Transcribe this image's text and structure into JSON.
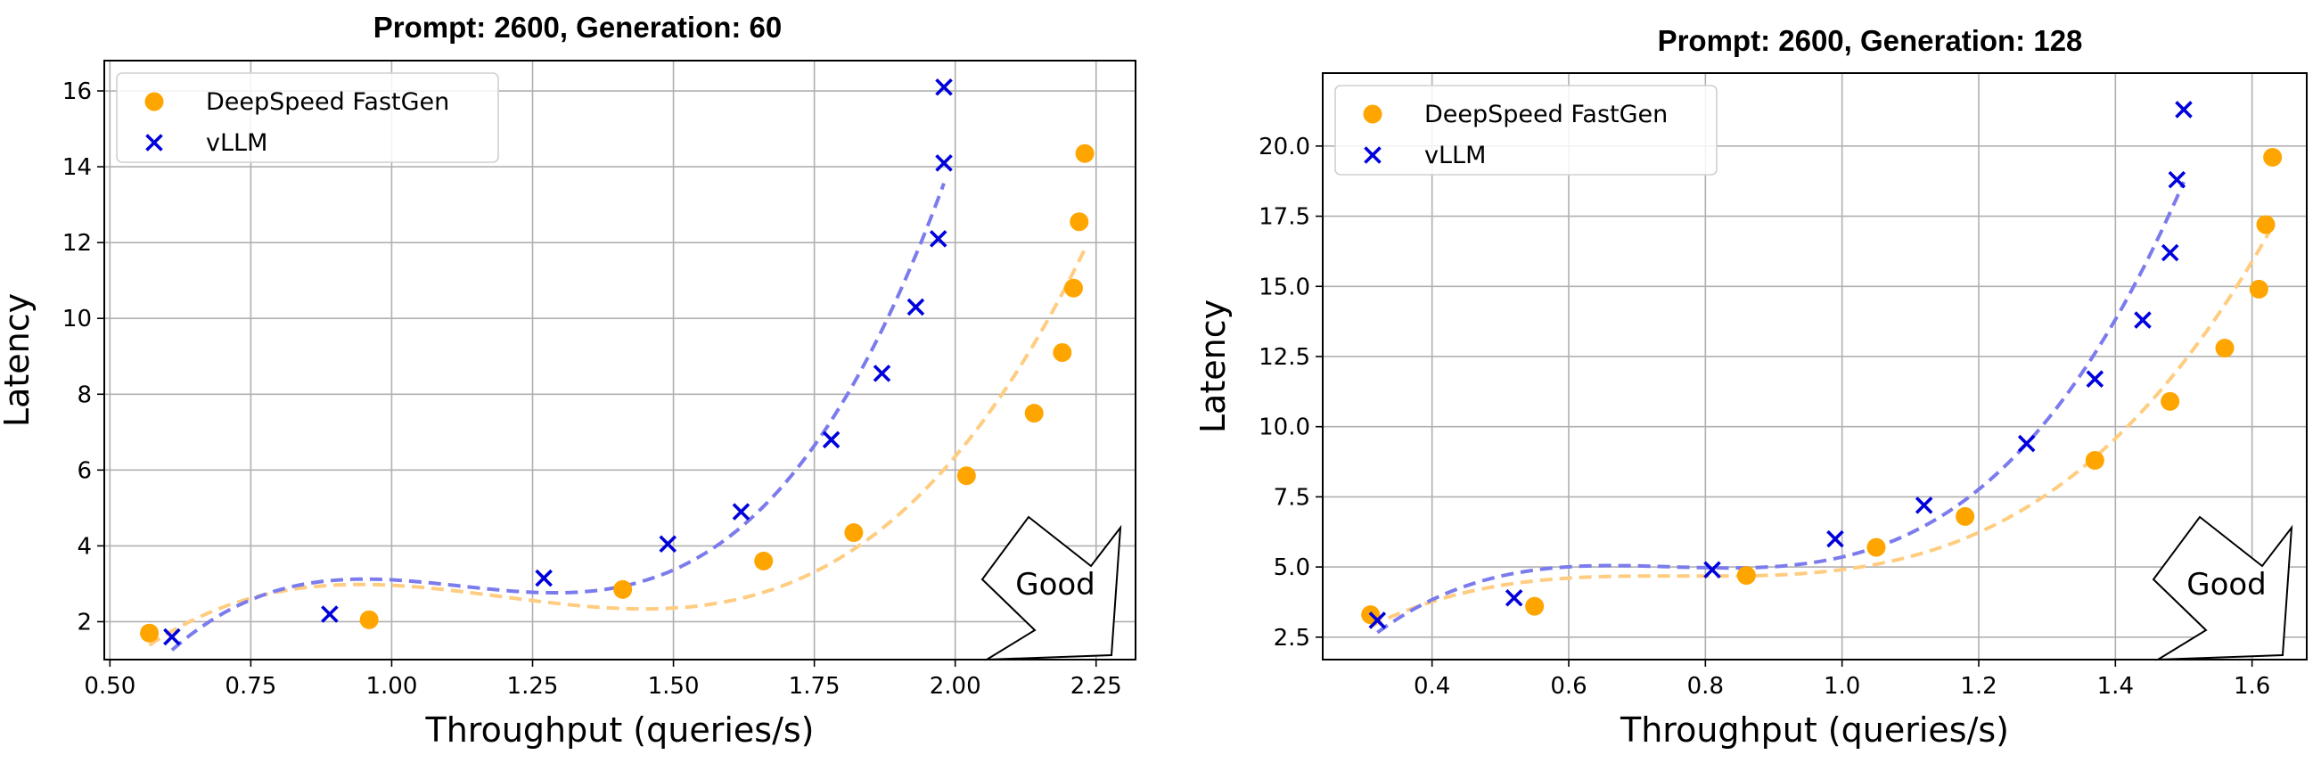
{
  "chart_data": [
    {
      "type": "scatter",
      "title": "Prompt: 2600, Generation: 60",
      "xlabel": "Throughput (queries/s)",
      "ylabel": "Latency",
      "xlim": [
        0.49,
        2.32
      ],
      "ylim": [
        1.0,
        16.8
      ],
      "xticks": [
        0.5,
        0.75,
        1.0,
        1.25,
        1.5,
        1.75,
        2.0,
        2.25
      ],
      "xtick_labels": [
        "0.50",
        "0.75",
        "1.00",
        "1.25",
        "1.50",
        "1.75",
        "2.00",
        "2.25"
      ],
      "yticks": [
        2,
        4,
        6,
        8,
        10,
        12,
        14,
        16
      ],
      "ytick_labels": [
        "2",
        "4",
        "6",
        "8",
        "10",
        "12",
        "14",
        "16"
      ],
      "grid": true,
      "legend_position": "top-left",
      "annotation": "Good",
      "series": [
        {
          "name": "DeepSpeed FastGen",
          "marker": "circle",
          "color": "#FFA500",
          "trend_color": "#FFCC80",
          "x": [
            0.57,
            0.96,
            1.41,
            1.66,
            1.82,
            2.02,
            2.14,
            2.19,
            2.21,
            2.22,
            2.23
          ],
          "y": [
            1.7,
            2.05,
            2.85,
            3.6,
            4.35,
            5.85,
            7.5,
            9.1,
            10.8,
            12.55,
            14.35
          ]
        },
        {
          "name": "vLLM",
          "marker": "x",
          "color": "#0000DD",
          "trend_color": "#7B7BEE",
          "x": [
            0.61,
            0.89,
            1.27,
            1.49,
            1.62,
            1.78,
            1.87,
            1.93,
            1.97,
            1.98,
            1.98
          ],
          "y": [
            1.6,
            2.2,
            3.15,
            4.05,
            4.9,
            6.8,
            8.55,
            10.3,
            12.1,
            14.1,
            16.1
          ]
        }
      ]
    },
    {
      "type": "scatter",
      "title": "Prompt: 2600, Generation: 128",
      "xlabel": "Throughput (queries/s)",
      "ylabel": "Latency",
      "xlim": [
        0.24,
        1.68
      ],
      "ylim": [
        1.7,
        22.6
      ],
      "xticks": [
        0.4,
        0.6,
        0.8,
        1.0,
        1.2,
        1.4,
        1.6
      ],
      "xtick_labels": [
        "0.4",
        "0.6",
        "0.8",
        "1.0",
        "1.2",
        "1.4",
        "1.6"
      ],
      "yticks": [
        2.5,
        5.0,
        7.5,
        10.0,
        12.5,
        15.0,
        17.5,
        20.0
      ],
      "ytick_labels": [
        "2.5",
        "5.0",
        "7.5",
        "10.0",
        "12.5",
        "15.0",
        "17.5",
        "20.0"
      ],
      "grid": true,
      "legend_position": "top-left",
      "annotation": "Good",
      "series": [
        {
          "name": "DeepSpeed FastGen",
          "marker": "circle",
          "color": "#FFA500",
          "trend_color": "#FFCC80",
          "x": [
            0.31,
            0.55,
            0.86,
            1.05,
            1.18,
            1.37,
            1.48,
            1.56,
            1.61,
            1.62,
            1.63
          ],
          "y": [
            3.3,
            3.6,
            4.7,
            5.7,
            6.8,
            8.8,
            10.9,
            12.8,
            14.9,
            17.2,
            19.6
          ]
        },
        {
          "name": "vLLM",
          "marker": "x",
          "color": "#0000DD",
          "trend_color": "#7B7BEE",
          "x": [
            0.32,
            0.52,
            0.81,
            0.99,
            1.12,
            1.27,
            1.37,
            1.44,
            1.48,
            1.49,
            1.5
          ],
          "y": [
            3.1,
            3.9,
            4.9,
            6.0,
            7.2,
            9.4,
            11.7,
            13.8,
            16.2,
            18.8,
            21.3
          ]
        }
      ]
    }
  ]
}
